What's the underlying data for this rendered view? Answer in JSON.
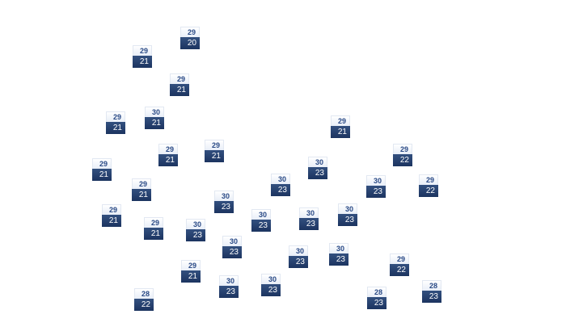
{
  "colors": {
    "high_text": "#2a4a86",
    "low_background": "#1c3460",
    "low_text": "#ffffff"
  },
  "stations": [
    {
      "high": "29",
      "low": "20"
    },
    {
      "high": "29",
      "low": "21"
    },
    {
      "high": "29",
      "low": "21"
    },
    {
      "high": "29",
      "low": "21"
    },
    {
      "high": "30",
      "low": "21"
    },
    {
      "high": "29",
      "low": "21"
    },
    {
      "high": "29",
      "low": "21"
    },
    {
      "high": "29",
      "low": "21"
    },
    {
      "high": "29",
      "low": "21"
    },
    {
      "high": "29",
      "low": "22"
    },
    {
      "high": "30",
      "low": "23"
    },
    {
      "high": "30",
      "low": "23"
    },
    {
      "high": "30",
      "low": "23"
    },
    {
      "high": "29",
      "low": "22"
    },
    {
      "high": "29",
      "low": "21"
    },
    {
      "high": "30",
      "low": "23"
    },
    {
      "high": "29",
      "low": "21"
    },
    {
      "high": "30",
      "low": "23"
    },
    {
      "high": "30",
      "low": "23"
    },
    {
      "high": "30",
      "low": "23"
    },
    {
      "high": "29",
      "low": "21"
    },
    {
      "high": "30",
      "low": "23"
    },
    {
      "high": "30",
      "low": "23"
    },
    {
      "high": "30",
      "low": "23"
    },
    {
      "high": "30",
      "low": "23"
    },
    {
      "high": "29",
      "low": "22"
    },
    {
      "high": "29",
      "low": "21"
    },
    {
      "high": "30",
      "low": "23"
    },
    {
      "high": "30",
      "low": "23"
    },
    {
      "high": "28",
      "low": "22"
    },
    {
      "high": "28",
      "low": "23"
    },
    {
      "high": "28",
      "low": "23"
    }
  ]
}
